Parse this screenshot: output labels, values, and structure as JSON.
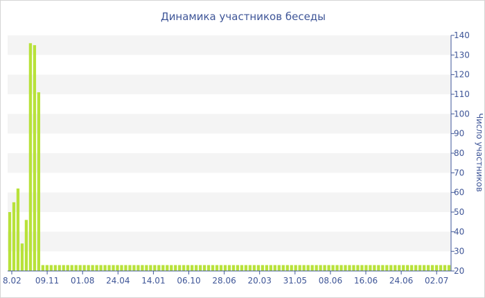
{
  "chart_data": {
    "type": "bar",
    "title": "Динамика участников беседы",
    "ylabel": "Число участников",
    "xlabel": "",
    "ylim": [
      20,
      140
    ],
    "y_ticks": [
      20,
      30,
      40,
      50,
      60,
      70,
      80,
      90,
      100,
      110,
      120,
      130,
      140
    ],
    "y_axis_position": "right",
    "x_tick_labels": [
      "8.02",
      "09.11",
      "01.08",
      "24.04",
      "14.01",
      "06.10",
      "28.06",
      "20.03",
      "31.05",
      "08.06",
      "16.06",
      "24.06",
      "02.07"
    ],
    "grid": "alternating horizontal bands",
    "colors": {
      "bar": "#b8e23a",
      "band": "#f4f4f4",
      "axis": "#3e5597"
    },
    "values": [
      50,
      55,
      62,
      34,
      46,
      136,
      135,
      111,
      23,
      23,
      23,
      23,
      23,
      23,
      23,
      23,
      23,
      23,
      23,
      23,
      23,
      23,
      23,
      23,
      23,
      23,
      23,
      23,
      23,
      23,
      23,
      23,
      23,
      23,
      23,
      23,
      23,
      23,
      23,
      23,
      23,
      23,
      23,
      23,
      23,
      23,
      23,
      23,
      23,
      23,
      23,
      23,
      23,
      23,
      23,
      23,
      23,
      23,
      23,
      23,
      23,
      23,
      23,
      23,
      23,
      23,
      23,
      23,
      23,
      23,
      23,
      23,
      23,
      23,
      23,
      23,
      23,
      23,
      23,
      23,
      23,
      23,
      23,
      23,
      23,
      23,
      23,
      23,
      23,
      23,
      23,
      23,
      23,
      23,
      23,
      23,
      23,
      23,
      23,
      23,
      23,
      23,
      23,
      23,
      23,
      23,
      23
    ]
  }
}
